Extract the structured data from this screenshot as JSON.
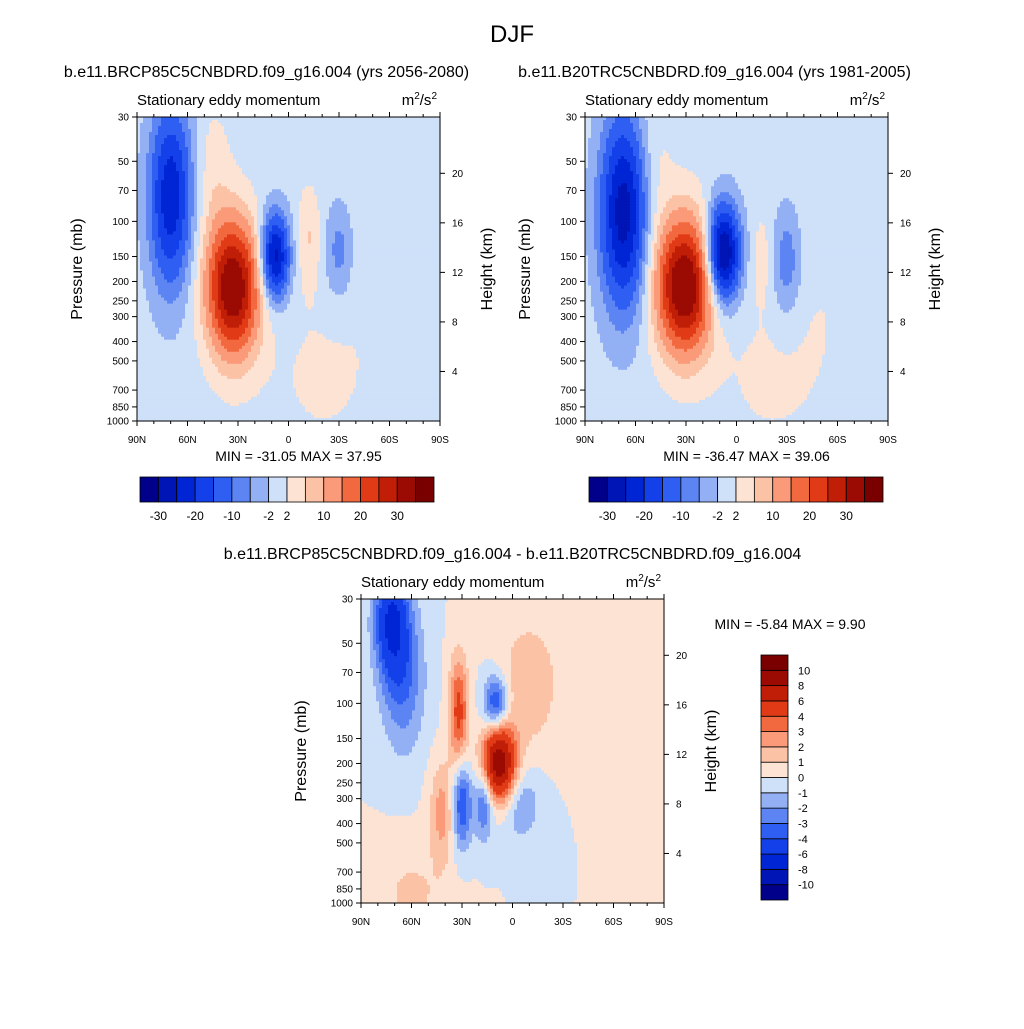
{
  "season": "DJF",
  "field": "Stationary eddy momentum",
  "units": {
    "base": "m",
    "exp1": "2",
    "sep": "/s",
    "exp2": "2"
  },
  "axes": {
    "y_left_title": "Pressure (mb)",
    "y_right_title": "Height (km)",
    "pressure_ticks": [
      30,
      50,
      70,
      100,
      150,
      200,
      250,
      300,
      400,
      500,
      700,
      850,
      1000
    ],
    "height_ticks": [
      4,
      8,
      12,
      16,
      20
    ],
    "lat_ticks": [
      {
        "v": 90,
        "label": "90N"
      },
      {
        "v": 60,
        "label": "60N"
      },
      {
        "v": 30,
        "label": "30N"
      },
      {
        "v": 0,
        "label": "0"
      },
      {
        "v": -30,
        "label": "30S"
      },
      {
        "v": -60,
        "label": "60S"
      },
      {
        "v": -90,
        "label": "90S"
      }
    ]
  },
  "colors": {
    "main_levels": [
      -30,
      -25,
      -20,
      -15,
      -10,
      -6,
      -2,
      2,
      6,
      10,
      15,
      20,
      25,
      30
    ],
    "main_label_values": [
      "-30",
      "-20",
      "-10",
      "-2",
      "2",
      "10",
      "20",
      "30"
    ],
    "main_palette": [
      "#00008b",
      "#0015b5",
      "#0025d5",
      "#1340e9",
      "#2f5ef2",
      "#5c84f3",
      "#93b0f5",
      "#cfe0f9",
      "#fde3d3",
      "#fcc2a6",
      "#fb9a78",
      "#f2683f",
      "#e03a16",
      "#c01e07",
      "#9b0b03",
      "#7a0000"
    ],
    "diff_levels": [
      -10,
      -8,
      -6,
      -4,
      -3,
      -2,
      -1,
      0,
      1,
      2,
      3,
      4,
      6,
      8,
      10
    ],
    "diff_label_values": [
      "-10",
      "-8",
      "-6",
      "-4",
      "-3",
      "-2",
      "-1",
      "0",
      "1",
      "2",
      "3",
      "4",
      "6",
      "8",
      "10"
    ],
    "diff_palette": [
      "#00008b",
      "#0015b5",
      "#0025d5",
      "#1340e9",
      "#2f5ef2",
      "#5c84f3",
      "#93b0f5",
      "#cfe0f9",
      "#fde3d3",
      "#fcc2a6",
      "#fb9a78",
      "#f2683f",
      "#e03a16",
      "#c01e07",
      "#9b0b03",
      "#7a0000"
    ]
  },
  "chart_data": [
    {
      "type": "heatmap",
      "title": "b.e11.BRCP85C5CNBDRD.f09_g16.004 (yrs 2056-2080)",
      "subtitle": "Stationary eddy momentum",
      "xlabel": "",
      "ylabel": "Pressure (mb)",
      "y2label": "Height (km)",
      "xlim": [
        90,
        -90
      ],
      "ylim": [
        1000,
        30
      ],
      "min_label": "MIN = -31.05  MAX =  37.95",
      "min": -31.05,
      "max": 37.95,
      "features": [
        {
          "lat": 70,
          "p": 75,
          "amp": -24,
          "sx": 9,
          "sp": 0.75
        },
        {
          "lat": 33,
          "p": 215,
          "amp": 36,
          "sx": 11,
          "sp": 0.55
        },
        {
          "lat": 8,
          "p": 150,
          "amp": -28,
          "sx": 6,
          "sp": 0.35
        },
        {
          "lat": -30,
          "p": 140,
          "amp": -8,
          "sx": 6,
          "sp": 0.4
        },
        {
          "lat": -12,
          "p": 120,
          "amp": 6,
          "sx": 5,
          "sp": 0.4
        },
        {
          "lat": 45,
          "p": 60,
          "amp": 4,
          "sx": 8,
          "sp": 0.6
        },
        {
          "lat": -55,
          "p": 120,
          "amp": 1.5,
          "sx": 18,
          "sp": 0.9
        },
        {
          "lat": -20,
          "p": 600,
          "amp": 2.5,
          "sx": 25,
          "sp": 0.7
        }
      ]
    },
    {
      "type": "heatmap",
      "title": "b.e11.B20TRC5CNBDRD.f09_g16.004 (yrs 1981-2005)",
      "subtitle": "Stationary eddy momentum",
      "xlabel": "",
      "ylabel": "Pressure (mb)",
      "y2label": "Height (km)",
      "xlim": [
        90,
        -90
      ],
      "ylim": [
        1000,
        30
      ],
      "min_label": "MIN = -36.47  MAX =  39.06",
      "min": -36.47,
      "max": 39.06,
      "features": [
        {
          "lat": 67,
          "p": 90,
          "amp": -28,
          "sx": 10,
          "sp": 0.8
        },
        {
          "lat": 31,
          "p": 210,
          "amp": 37,
          "sx": 12,
          "sp": 0.55
        },
        {
          "lat": 8,
          "p": 145,
          "amp": -34,
          "sx": 7,
          "sp": 0.4
        },
        {
          "lat": -30,
          "p": 160,
          "amp": -9,
          "sx": 6,
          "sp": 0.45
        },
        {
          "lat": -15,
          "p": 150,
          "amp": 4,
          "sx": 4,
          "sp": 0.35
        },
        {
          "lat": 50,
          "p": 50,
          "amp": 4,
          "sx": 8,
          "sp": 0.6
        },
        {
          "lat": -55,
          "p": 200,
          "amp": 1.5,
          "sx": 18,
          "sp": 0.9
        },
        {
          "lat": -20,
          "p": 600,
          "amp": 2.5,
          "sx": 25,
          "sp": 0.7
        }
      ]
    },
    {
      "type": "heatmap",
      "title": "b.e11.BRCP85C5CNBDRD.f09_g16.004 - b.e11.B20TRC5CNBDRD.f09_g16.004",
      "subtitle": "Stationary eddy momentum",
      "xlabel": "",
      "ylabel": "Pressure (mb)",
      "y2label": "Height (km)",
      "xlim": [
        90,
        -90
      ],
      "ylim": [
        1000,
        30
      ],
      "min_label": "MIN =  -5.84  MAX =   9.90",
      "min": -5.84,
      "max": 9.9,
      "features": [
        {
          "lat": 72,
          "p": 38,
          "amp": -5.8,
          "sx": 7,
          "sp": 0.45
        },
        {
          "lat": 65,
          "p": 75,
          "amp": -3,
          "sx": 9,
          "sp": 0.6
        },
        {
          "lat": 32,
          "p": 110,
          "amp": 4.5,
          "sx": 4,
          "sp": 0.45
        },
        {
          "lat": 10,
          "p": 100,
          "amp": -4.5,
          "sx": 5,
          "sp": 0.22
        },
        {
          "lat": 8,
          "p": 200,
          "amp": 9.5,
          "sx": 7,
          "sp": 0.3
        },
        {
          "lat": 30,
          "p": 320,
          "amp": -4.2,
          "sx": 4,
          "sp": 0.35
        },
        {
          "lat": 17,
          "p": 310,
          "amp": -3.5,
          "sx": 4,
          "sp": 0.3
        },
        {
          "lat": -5,
          "p": 320,
          "amp": -2,
          "sx": 8,
          "sp": 0.3
        },
        {
          "lat": 42,
          "p": 350,
          "amp": 2.5,
          "sx": 5,
          "sp": 0.4
        },
        {
          "lat": -10,
          "p": 80,
          "amp": 2,
          "sx": 12,
          "sp": 0.5
        },
        {
          "lat": 60,
          "p": 900,
          "amp": 1.2,
          "sx": 15,
          "sp": 0.4
        }
      ]
    }
  ]
}
